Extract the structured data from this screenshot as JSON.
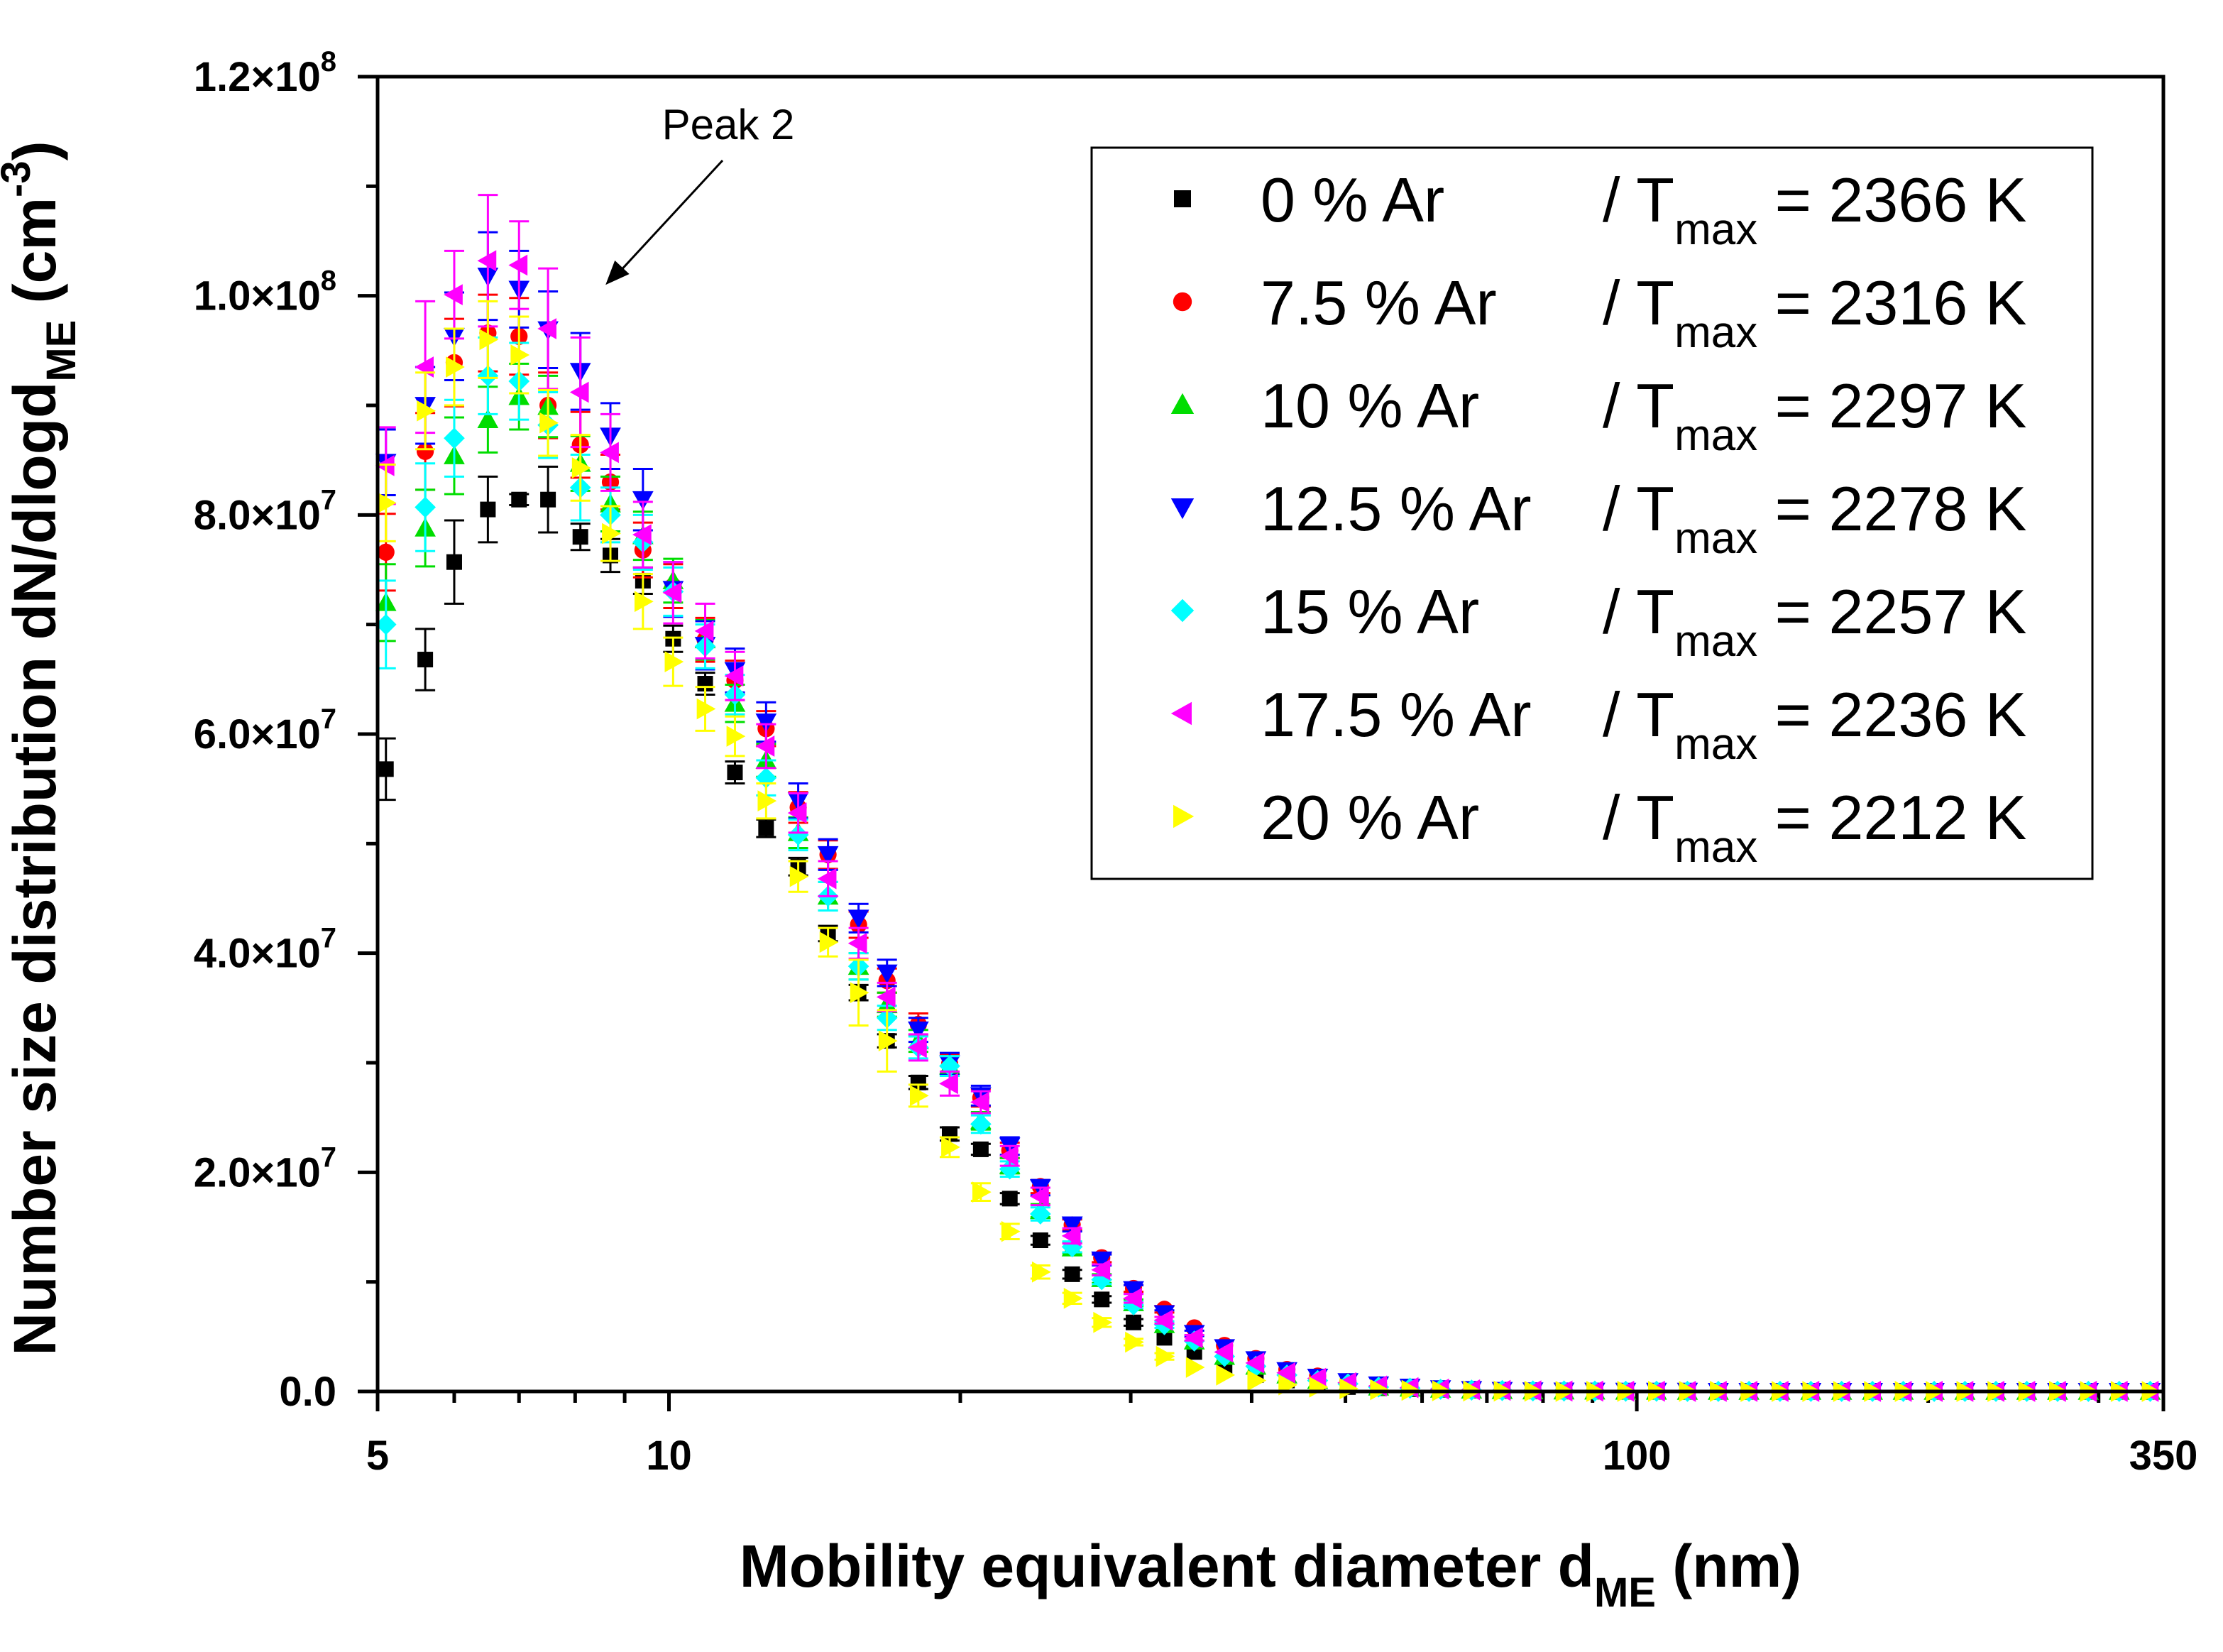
{
  "chart_data": {
    "type": "scatter",
    "title": "",
    "xscale": "log",
    "xlim": [
      5,
      350
    ],
    "ylim": [
      0,
      120000000
    ],
    "xlabel_main": "Mobility equivalent diameter d",
    "xlabel_sub": "ME",
    "xlabel_tail": " (nm)",
    "ylabel_main": "Number size distribution dN/dlogd",
    "ylabel_sub": "ME",
    "ylabel_unit_open": " (cm",
    "ylabel_unit_sup": "-3",
    "ylabel_unit_close": ")",
    "x_ticks": [
      {
        "value": 5,
        "label": "5"
      },
      {
        "value": 10,
        "label": "10"
      },
      {
        "value": 100,
        "label": "100"
      },
      {
        "value": 350,
        "label": "350"
      }
    ],
    "y_ticks": [
      {
        "value": 0,
        "base": "0.0",
        "exp": ""
      },
      {
        "value": 20000000,
        "base": "2.0×10",
        "exp": "7"
      },
      {
        "value": 40000000,
        "base": "4.0×10",
        "exp": "7"
      },
      {
        "value": 60000000,
        "base": "6.0×10",
        "exp": "7"
      },
      {
        "value": 80000000,
        "base": "8.0×10",
        "exp": "7"
      },
      {
        "value": 100000000,
        "base": "1.0×10",
        "exp": "8"
      },
      {
        "value": 120000000,
        "base": "1.2×10",
        "exp": "8"
      }
    ],
    "annotation": {
      "text": "Peak 2",
      "x": 8.6,
      "y": 101000000
    },
    "legend_position": "top-right",
    "x": [
      5.1,
      5.6,
      6.0,
      6.5,
      7.0,
      7.5,
      8.1,
      8.7,
      9.4,
      10.1,
      10.9,
      11.7,
      12.6,
      13.6,
      14.6,
      15.7,
      16.8,
      18.1,
      19.5,
      21.0,
      22.5,
      24.2,
      26.1,
      28.0,
      30.2,
      32.5,
      34.9,
      37.5,
      40.4,
      43.5,
      46.8,
      50.3,
      54.1,
      58.3,
      62.7,
      67.5,
      72.6,
      78.1,
      84.1,
      90.5,
      97.4,
      104.8,
      112.8,
      121.4,
      130.6,
      140.6,
      151.3,
      162.8,
      175.2,
      188.5,
      202.9,
      218.3,
      235.0,
      252.9,
      272.1,
      292.8,
      315.1,
      339.2
    ],
    "series": [
      {
        "name": "0 % Ar",
        "tmax": "2366 K",
        "color": "#000000",
        "marker": "square",
        "values": [
          56.8,
          66.8,
          75.7,
          80.5,
          81.4,
          81.4,
          78.0,
          76.3,
          74.0,
          68.7,
          64.6,
          56.5,
          51.4,
          47.9,
          41.8,
          36.4,
          32.0,
          28.2,
          23.5,
          22.1,
          17.6,
          13.8,
          10.7,
          8.4,
          6.3,
          4.9,
          3.6,
          2.2,
          1.5,
          1.0,
          0.7,
          0.4,
          0.3,
          0.2,
          0.15,
          0.1,
          0.08,
          0.05,
          0.04,
          0.03,
          0.02,
          0.02,
          0.01,
          0.01,
          0.01,
          0.01,
          0.01,
          0.01,
          0.0,
          0.0,
          0.0,
          0.0,
          0.0,
          0.0,
          0.0,
          0.0,
          0.0,
          0.0
        ],
        "errors": [
          2.8,
          2.8,
          3.8,
          3.0,
          0.5,
          3.0,
          1.2,
          1.5,
          1.2,
          1.2,
          1.0,
          1.0,
          0.8,
          0.8,
          0.7,
          0.7,
          0.6,
          0.6,
          0.6,
          0.5,
          0.5,
          0.4,
          0.4,
          0.3,
          0.3,
          0.2,
          0.2,
          0.15,
          0.1,
          0.1,
          0.1,
          0.05,
          0.05,
          0.05,
          0.05,
          0.05,
          0.05,
          0.05,
          0.05,
          0.05,
          0.05,
          0.05,
          0.05,
          0.05,
          0.05,
          0.05,
          0.05,
          0.05,
          0.05,
          0.05,
          0.05,
          0.05,
          0.05,
          0.05,
          0.05,
          0.05,
          0.05,
          0.05
        ]
      },
      {
        "name": "7.5 % Ar",
        "tmax": "2316 K",
        "color": "#ff0000",
        "marker": "circle",
        "values": [
          76.6,
          85.8,
          93.9,
          96.6,
          96.3,
          90.0,
          86.4,
          83.0,
          76.8,
          73.5,
          68.6,
          64.9,
          60.5,
          53.3,
          49.0,
          42.6,
          37.5,
          33.5,
          29.9,
          26.8,
          22.0,
          18.7,
          15.2,
          12.2,
          9.4,
          7.5,
          5.8,
          4.2,
          3.0,
          2.0,
          1.4,
          0.9,
          0.6,
          0.4,
          0.25,
          0.18,
          0.1,
          0.06,
          0.04,
          0.03,
          0.02,
          0.02,
          0.02,
          0.01,
          0.01,
          0.01,
          0.01,
          0.01,
          0.01,
          0.01,
          0.01,
          0.01,
          0.01,
          0.01,
          0.01,
          0.01,
          0.01,
          0.01
        ],
        "errors": [
          3.5,
          3.5,
          4.0,
          3.5,
          3.5,
          3.0,
          3.0,
          2.5,
          2.5,
          2.0,
          2.0,
          1.8,
          1.6,
          1.4,
          1.3,
          1.2,
          1.1,
          1.0,
          0.9,
          0.8,
          0.7,
          0.6,
          0.5,
          0.4,
          0.3,
          0.3,
          0.2,
          0.15,
          0.1,
          0.1,
          0.1,
          0.05,
          0.05,
          0.05,
          0.05,
          0.05,
          0.05,
          0.05,
          0.05,
          0.05,
          0.05,
          0.05,
          0.05,
          0.05,
          0.05,
          0.05,
          0.05,
          0.05,
          0.05,
          0.05,
          0.05,
          0.05,
          0.05,
          0.05,
          0.05,
          0.05,
          0.05,
          0.05
        ]
      },
      {
        "name": "10 % Ar",
        "tmax": "2297 K",
        "color": "#00dd00",
        "marker": "triangle-up",
        "values": [
          72.0,
          78.8,
          85.4,
          88.7,
          90.8,
          89.9,
          84.7,
          81.0,
          78.1,
          74.0,
          68.6,
          62.8,
          57.6,
          51.0,
          45.2,
          38.8,
          35.3,
          32.0,
          29.7,
          24.7,
          20.6,
          16.5,
          13.1,
          10.3,
          8.1,
          6.1,
          4.6,
          3.2,
          2.3,
          1.5,
          1.0,
          0.7,
          0.4,
          0.3,
          0.2,
          0.12,
          0.08,
          0.05,
          0.04,
          0.03,
          0.02,
          0.02,
          0.01,
          0.01,
          0.01,
          0.01,
          0.01,
          0.01,
          0.01,
          0.01,
          0.01,
          0.01,
          0.01,
          0.01,
          0.01,
          0.01,
          0.01,
          0.01
        ],
        "errors": [
          3.5,
          3.5,
          3.5,
          3.0,
          3.0,
          2.8,
          2.5,
          2.5,
          2.2,
          2.0,
          1.8,
          1.7,
          1.5,
          1.4,
          1.3,
          1.2,
          1.1,
          1.0,
          0.9,
          0.8,
          0.7,
          0.6,
          0.5,
          0.4,
          0.3,
          0.3,
          0.2,
          0.15,
          0.1,
          0.1,
          0.1,
          0.05,
          0.05,
          0.05,
          0.05,
          0.05,
          0.05,
          0.05,
          0.05,
          0.05,
          0.05,
          0.05,
          0.05,
          0.05,
          0.05,
          0.05,
          0.05,
          0.05,
          0.05,
          0.05,
          0.05,
          0.05,
          0.05,
          0.05,
          0.05,
          0.05,
          0.05,
          0.05
        ]
      },
      {
        "name": "12.5 % Ar",
        "tmax": "2278 K",
        "color": "#0000ff",
        "marker": "triangle-down",
        "values": [
          84.8,
          90.0,
          96.3,
          101.8,
          100.6,
          96.9,
          93.1,
          87.2,
          81.4,
          73.2,
          68.1,
          65.8,
          61.1,
          53.9,
          49.0,
          43.2,
          38.2,
          33.0,
          29.9,
          27.0,
          22.4,
          18.6,
          15.2,
          12.0,
          9.3,
          7.1,
          5.3,
          4.0,
          2.9,
          1.9,
          1.3,
          0.9,
          0.6,
          0.4,
          0.25,
          0.18,
          0.1,
          0.06,
          0.04,
          0.03,
          0.02,
          0.02,
          0.02,
          0.01,
          0.01,
          0.01,
          0.01,
          0.01,
          0.01,
          0.01,
          0.01,
          0.01,
          0.01,
          0.01,
          0.01,
          0.01,
          0.01,
          0.01
        ],
        "errors": [
          3.0,
          3.5,
          4.0,
          4.0,
          3.5,
          3.5,
          3.5,
          3.0,
          2.8,
          2.5,
          2.2,
          2.0,
          1.8,
          1.6,
          1.4,
          1.3,
          1.2,
          1.1,
          1.0,
          0.9,
          0.8,
          0.7,
          0.6,
          0.5,
          0.4,
          0.3,
          0.25,
          0.2,
          0.15,
          0.1,
          0.1,
          0.05,
          0.05,
          0.05,
          0.05,
          0.05,
          0.05,
          0.05,
          0.05,
          0.05,
          0.05,
          0.05,
          0.05,
          0.05,
          0.05,
          0.05,
          0.05,
          0.05,
          0.05,
          0.05,
          0.05,
          0.05,
          0.05,
          0.05,
          0.05,
          0.05,
          0.05,
          0.05
        ]
      },
      {
        "name": "15 % Ar",
        "tmax": "2257 K",
        "color": "#00ffff",
        "marker": "diamond",
        "values": [
          70.0,
          80.7,
          87.0,
          92.7,
          92.2,
          88.2,
          82.5,
          80.0,
          77.5,
          73.0,
          68.0,
          63.6,
          56.0,
          50.8,
          45.2,
          38.8,
          34.1,
          31.4,
          29.7,
          24.4,
          20.3,
          16.2,
          13.2,
          10.2,
          7.9,
          6.1,
          4.6,
          3.2,
          2.3,
          1.5,
          1.0,
          0.7,
          0.4,
          0.3,
          0.2,
          0.12,
          0.08,
          0.05,
          0.04,
          0.03,
          0.02,
          0.02,
          0.01,
          0.01,
          0.01,
          0.01,
          0.01,
          0.01,
          0.01,
          0.01,
          0.01,
          0.01,
          0.01,
          0.01,
          0.01,
          0.01,
          0.01,
          0.01
        ],
        "errors": [
          4.0,
          4.0,
          3.5,
          3.5,
          3.5,
          3.0,
          3.0,
          2.5,
          2.5,
          2.2,
          2.0,
          1.8,
          1.6,
          1.4,
          1.3,
          1.2,
          1.1,
          1.0,
          0.9,
          0.8,
          0.7,
          0.6,
          0.5,
          0.4,
          0.3,
          0.3,
          0.2,
          0.15,
          0.1,
          0.1,
          0.1,
          0.05,
          0.05,
          0.05,
          0.05,
          0.05,
          0.05,
          0.05,
          0.05,
          0.05,
          0.05,
          0.05,
          0.05,
          0.05,
          0.05,
          0.05,
          0.05,
          0.05,
          0.05,
          0.05,
          0.05,
          0.05,
          0.05,
          0.05,
          0.05,
          0.05,
          0.05,
          0.05
        ]
      },
      {
        "name": "17.5 % Ar",
        "tmax": "2236 K",
        "color": "#ff00ff",
        "marker": "triangle-left",
        "values": [
          84.5,
          93.5,
          100.1,
          103.2,
          102.8,
          97.0,
          91.2,
          85.7,
          78.2,
          72.9,
          69.4,
          65.3,
          58.9,
          52.8,
          46.8,
          40.9,
          36.0,
          31.4,
          28.1,
          26.4,
          21.5,
          17.8,
          14.2,
          11.1,
          8.5,
          6.5,
          4.9,
          3.6,
          2.6,
          1.7,
          1.2,
          0.8,
          0.5,
          0.35,
          0.22,
          0.15,
          0.1,
          0.06,
          0.04,
          0.03,
          0.02,
          0.02,
          0.01,
          0.01,
          0.01,
          0.01,
          0.01,
          0.01,
          0.01,
          0.01,
          0.01,
          0.01,
          0.01,
          0.01,
          0.01,
          0.01,
          0.01,
          0.01
        ],
        "errors": [
          3.5,
          6.0,
          4.0,
          6.0,
          4.0,
          5.5,
          5.0,
          3.5,
          3.0,
          2.8,
          2.5,
          2.2,
          2.0,
          1.8,
          1.6,
          1.4,
          1.3,
          1.2,
          1.1,
          1.0,
          0.9,
          0.8,
          0.7,
          0.5,
          0.4,
          0.3,
          0.25,
          0.2,
          0.15,
          0.1,
          0.1,
          0.05,
          0.05,
          0.05,
          0.05,
          0.05,
          0.05,
          0.05,
          0.05,
          0.05,
          0.05,
          0.05,
          0.05,
          0.05,
          0.05,
          0.05,
          0.05,
          0.05,
          0.05,
          0.05,
          0.05,
          0.05,
          0.05,
          0.05,
          0.05,
          0.05,
          0.05,
          0.05
        ]
      },
      {
        "name": "20 % Ar",
        "tmax": "2212 K",
        "color": "#ffff00",
        "marker": "triangle-right",
        "values": [
          81.1,
          89.5,
          93.5,
          96.0,
          94.6,
          88.4,
          84.3,
          78.3,
          72.1,
          66.6,
          62.3,
          59.8,
          53.9,
          47.0,
          41.0,
          36.4,
          32.0,
          27.0,
          22.3,
          18.2,
          14.6,
          10.9,
          8.5,
          6.3,
          4.5,
          3.2,
          2.2,
          1.5,
          1.0,
          0.6,
          0.4,
          0.25,
          0.16,
          0.1,
          0.06,
          0.04,
          0.03,
          0.02,
          0.01,
          0.01,
          0.01,
          0.01,
          0.01,
          0.01,
          0.0,
          0.0,
          0.0,
          0.0,
          0.0,
          0.0,
          0.0,
          0.0,
          0.0,
          0.0,
          0.0,
          0.0,
          0.0,
          0.0
        ],
        "errors": [
          3.5,
          3.5,
          3.5,
          3.5,
          3.5,
          3.0,
          3.0,
          2.5,
          2.5,
          2.2,
          2.0,
          1.8,
          1.6,
          1.4,
          1.3,
          3.0,
          2.8,
          1.0,
          0.9,
          0.8,
          0.7,
          0.6,
          0.5,
          0.4,
          0.3,
          0.3,
          0.2,
          0.15,
          0.1,
          0.1,
          0.1,
          0.05,
          0.05,
          0.05,
          0.05,
          0.05,
          0.05,
          0.05,
          0.05,
          0.05,
          0.05,
          0.05,
          0.05,
          0.05,
          0.05,
          0.05,
          0.05,
          0.05,
          0.05,
          0.05,
          0.05,
          0.05,
          0.05,
          0.05,
          0.05,
          0.05,
          0.05,
          0.05
        ]
      }
    ],
    "values_unit_multiplier": 1000000,
    "legend_tmax_prefix": "/ T",
    "legend_tmax_sub": "max",
    "legend_tmax_eq": "="
  }
}
